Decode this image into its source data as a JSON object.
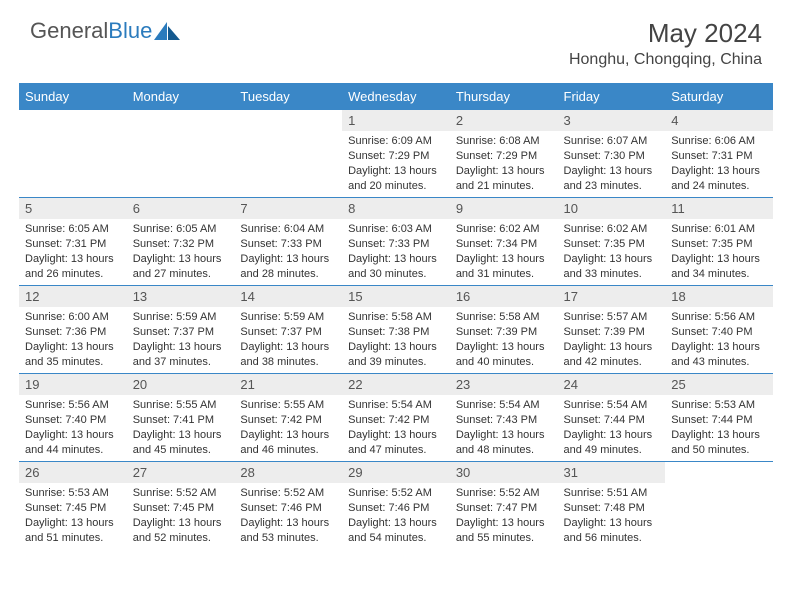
{
  "logo": {
    "text_gray": "General",
    "text_blue": "Blue"
  },
  "title": "May 2024",
  "location": "Honghu, Chongqing, China",
  "day_headers": [
    "Sunday",
    "Monday",
    "Tuesday",
    "Wednesday",
    "Thursday",
    "Friday",
    "Saturday"
  ],
  "colors": {
    "header_bg": "#3a87c7",
    "header_text": "#ffffff",
    "daynum_bg": "#ededed",
    "border": "#3a87c7",
    "text": "#333333",
    "logo_gray": "#555555",
    "logo_blue": "#2b7bbd"
  },
  "typography": {
    "title_fontsize": 26,
    "location_fontsize": 16,
    "header_fontsize": 13,
    "daynum_fontsize": 13,
    "body_fontsize": 11
  },
  "weeks": [
    [
      {
        "num": "",
        "sunrise": "",
        "sunset": "",
        "daylight": ""
      },
      {
        "num": "",
        "sunrise": "",
        "sunset": "",
        "daylight": ""
      },
      {
        "num": "",
        "sunrise": "",
        "sunset": "",
        "daylight": ""
      },
      {
        "num": "1",
        "sunrise": "Sunrise: 6:09 AM",
        "sunset": "Sunset: 7:29 PM",
        "daylight": "Daylight: 13 hours and 20 minutes."
      },
      {
        "num": "2",
        "sunrise": "Sunrise: 6:08 AM",
        "sunset": "Sunset: 7:29 PM",
        "daylight": "Daylight: 13 hours and 21 minutes."
      },
      {
        "num": "3",
        "sunrise": "Sunrise: 6:07 AM",
        "sunset": "Sunset: 7:30 PM",
        "daylight": "Daylight: 13 hours and 23 minutes."
      },
      {
        "num": "4",
        "sunrise": "Sunrise: 6:06 AM",
        "sunset": "Sunset: 7:31 PM",
        "daylight": "Daylight: 13 hours and 24 minutes."
      }
    ],
    [
      {
        "num": "5",
        "sunrise": "Sunrise: 6:05 AM",
        "sunset": "Sunset: 7:31 PM",
        "daylight": "Daylight: 13 hours and 26 minutes."
      },
      {
        "num": "6",
        "sunrise": "Sunrise: 6:05 AM",
        "sunset": "Sunset: 7:32 PM",
        "daylight": "Daylight: 13 hours and 27 minutes."
      },
      {
        "num": "7",
        "sunrise": "Sunrise: 6:04 AM",
        "sunset": "Sunset: 7:33 PM",
        "daylight": "Daylight: 13 hours and 28 minutes."
      },
      {
        "num": "8",
        "sunrise": "Sunrise: 6:03 AM",
        "sunset": "Sunset: 7:33 PM",
        "daylight": "Daylight: 13 hours and 30 minutes."
      },
      {
        "num": "9",
        "sunrise": "Sunrise: 6:02 AM",
        "sunset": "Sunset: 7:34 PM",
        "daylight": "Daylight: 13 hours and 31 minutes."
      },
      {
        "num": "10",
        "sunrise": "Sunrise: 6:02 AM",
        "sunset": "Sunset: 7:35 PM",
        "daylight": "Daylight: 13 hours and 33 minutes."
      },
      {
        "num": "11",
        "sunrise": "Sunrise: 6:01 AM",
        "sunset": "Sunset: 7:35 PM",
        "daylight": "Daylight: 13 hours and 34 minutes."
      }
    ],
    [
      {
        "num": "12",
        "sunrise": "Sunrise: 6:00 AM",
        "sunset": "Sunset: 7:36 PM",
        "daylight": "Daylight: 13 hours and 35 minutes."
      },
      {
        "num": "13",
        "sunrise": "Sunrise: 5:59 AM",
        "sunset": "Sunset: 7:37 PM",
        "daylight": "Daylight: 13 hours and 37 minutes."
      },
      {
        "num": "14",
        "sunrise": "Sunrise: 5:59 AM",
        "sunset": "Sunset: 7:37 PM",
        "daylight": "Daylight: 13 hours and 38 minutes."
      },
      {
        "num": "15",
        "sunrise": "Sunrise: 5:58 AM",
        "sunset": "Sunset: 7:38 PM",
        "daylight": "Daylight: 13 hours and 39 minutes."
      },
      {
        "num": "16",
        "sunrise": "Sunrise: 5:58 AM",
        "sunset": "Sunset: 7:39 PM",
        "daylight": "Daylight: 13 hours and 40 minutes."
      },
      {
        "num": "17",
        "sunrise": "Sunrise: 5:57 AM",
        "sunset": "Sunset: 7:39 PM",
        "daylight": "Daylight: 13 hours and 42 minutes."
      },
      {
        "num": "18",
        "sunrise": "Sunrise: 5:56 AM",
        "sunset": "Sunset: 7:40 PM",
        "daylight": "Daylight: 13 hours and 43 minutes."
      }
    ],
    [
      {
        "num": "19",
        "sunrise": "Sunrise: 5:56 AM",
        "sunset": "Sunset: 7:40 PM",
        "daylight": "Daylight: 13 hours and 44 minutes."
      },
      {
        "num": "20",
        "sunrise": "Sunrise: 5:55 AM",
        "sunset": "Sunset: 7:41 PM",
        "daylight": "Daylight: 13 hours and 45 minutes."
      },
      {
        "num": "21",
        "sunrise": "Sunrise: 5:55 AM",
        "sunset": "Sunset: 7:42 PM",
        "daylight": "Daylight: 13 hours and 46 minutes."
      },
      {
        "num": "22",
        "sunrise": "Sunrise: 5:54 AM",
        "sunset": "Sunset: 7:42 PM",
        "daylight": "Daylight: 13 hours and 47 minutes."
      },
      {
        "num": "23",
        "sunrise": "Sunrise: 5:54 AM",
        "sunset": "Sunset: 7:43 PM",
        "daylight": "Daylight: 13 hours and 48 minutes."
      },
      {
        "num": "24",
        "sunrise": "Sunrise: 5:54 AM",
        "sunset": "Sunset: 7:44 PM",
        "daylight": "Daylight: 13 hours and 49 minutes."
      },
      {
        "num": "25",
        "sunrise": "Sunrise: 5:53 AM",
        "sunset": "Sunset: 7:44 PM",
        "daylight": "Daylight: 13 hours and 50 minutes."
      }
    ],
    [
      {
        "num": "26",
        "sunrise": "Sunrise: 5:53 AM",
        "sunset": "Sunset: 7:45 PM",
        "daylight": "Daylight: 13 hours and 51 minutes."
      },
      {
        "num": "27",
        "sunrise": "Sunrise: 5:52 AM",
        "sunset": "Sunset: 7:45 PM",
        "daylight": "Daylight: 13 hours and 52 minutes."
      },
      {
        "num": "28",
        "sunrise": "Sunrise: 5:52 AM",
        "sunset": "Sunset: 7:46 PM",
        "daylight": "Daylight: 13 hours and 53 minutes."
      },
      {
        "num": "29",
        "sunrise": "Sunrise: 5:52 AM",
        "sunset": "Sunset: 7:46 PM",
        "daylight": "Daylight: 13 hours and 54 minutes."
      },
      {
        "num": "30",
        "sunrise": "Sunrise: 5:52 AM",
        "sunset": "Sunset: 7:47 PM",
        "daylight": "Daylight: 13 hours and 55 minutes."
      },
      {
        "num": "31",
        "sunrise": "Sunrise: 5:51 AM",
        "sunset": "Sunset: 7:48 PM",
        "daylight": "Daylight: 13 hours and 56 minutes."
      },
      {
        "num": "",
        "sunrise": "",
        "sunset": "",
        "daylight": ""
      }
    ]
  ]
}
